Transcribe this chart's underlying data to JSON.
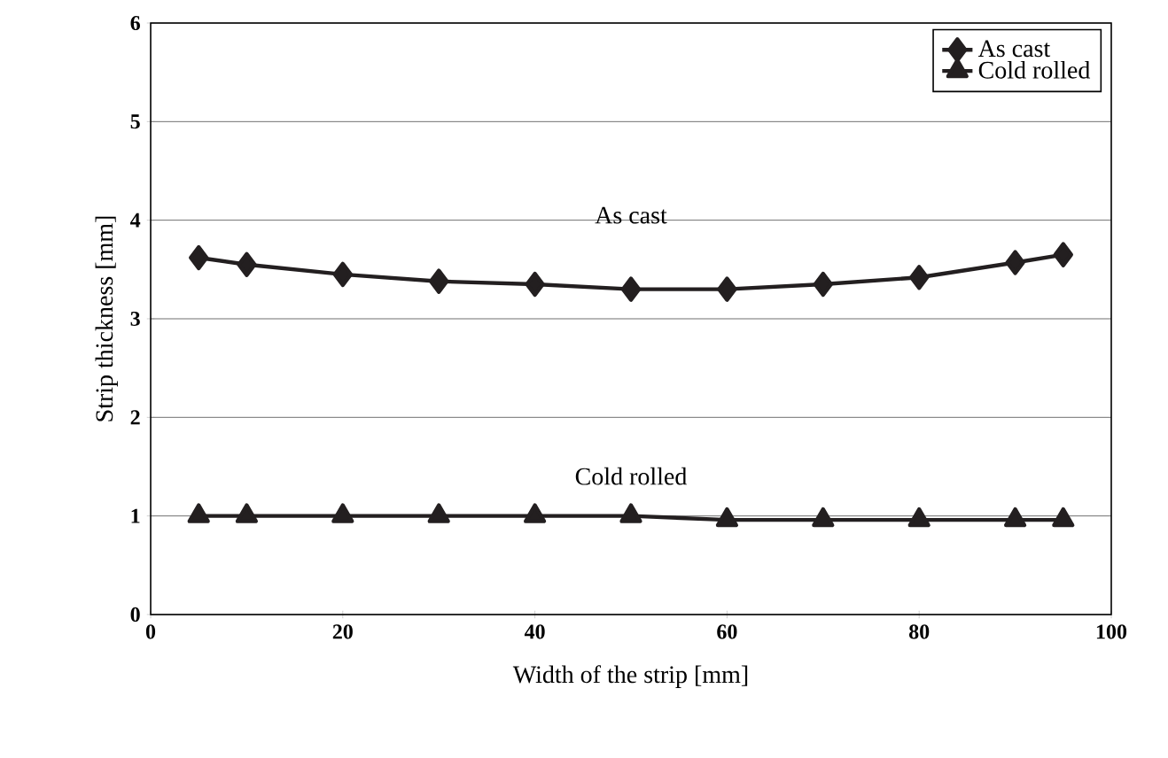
{
  "chart_data": {
    "type": "line",
    "xlabel": "Width of the strip [mm]",
    "ylabel": "Strip thickness [mm]",
    "xlim": [
      0,
      100
    ],
    "xticks": [
      0,
      20,
      40,
      60,
      80,
      100
    ],
    "ylim": [
      0,
      6
    ],
    "yticks": [
      0,
      1,
      2,
      3,
      4,
      5,
      6
    ],
    "x": [
      5,
      10,
      20,
      30,
      40,
      50,
      60,
      70,
      80,
      90,
      95
    ],
    "series": [
      {
        "name": "As cast",
        "color": "#231f20",
        "marker": "diamond",
        "values": [
          3.62,
          3.55,
          3.45,
          3.38,
          3.35,
          3.3,
          3.3,
          3.35,
          3.42,
          3.57,
          3.65
        ]
      },
      {
        "name": "Cold rolled",
        "color": "#231f20",
        "marker": "triangle",
        "values": [
          1.0,
          1.0,
          1.0,
          1.0,
          1.0,
          1.0,
          0.96,
          0.96,
          0.96,
          0.96,
          0.96
        ]
      }
    ],
    "annotations": [
      "As cast",
      "Cold rolled"
    ],
    "grid": "y",
    "legend": "top right"
  }
}
